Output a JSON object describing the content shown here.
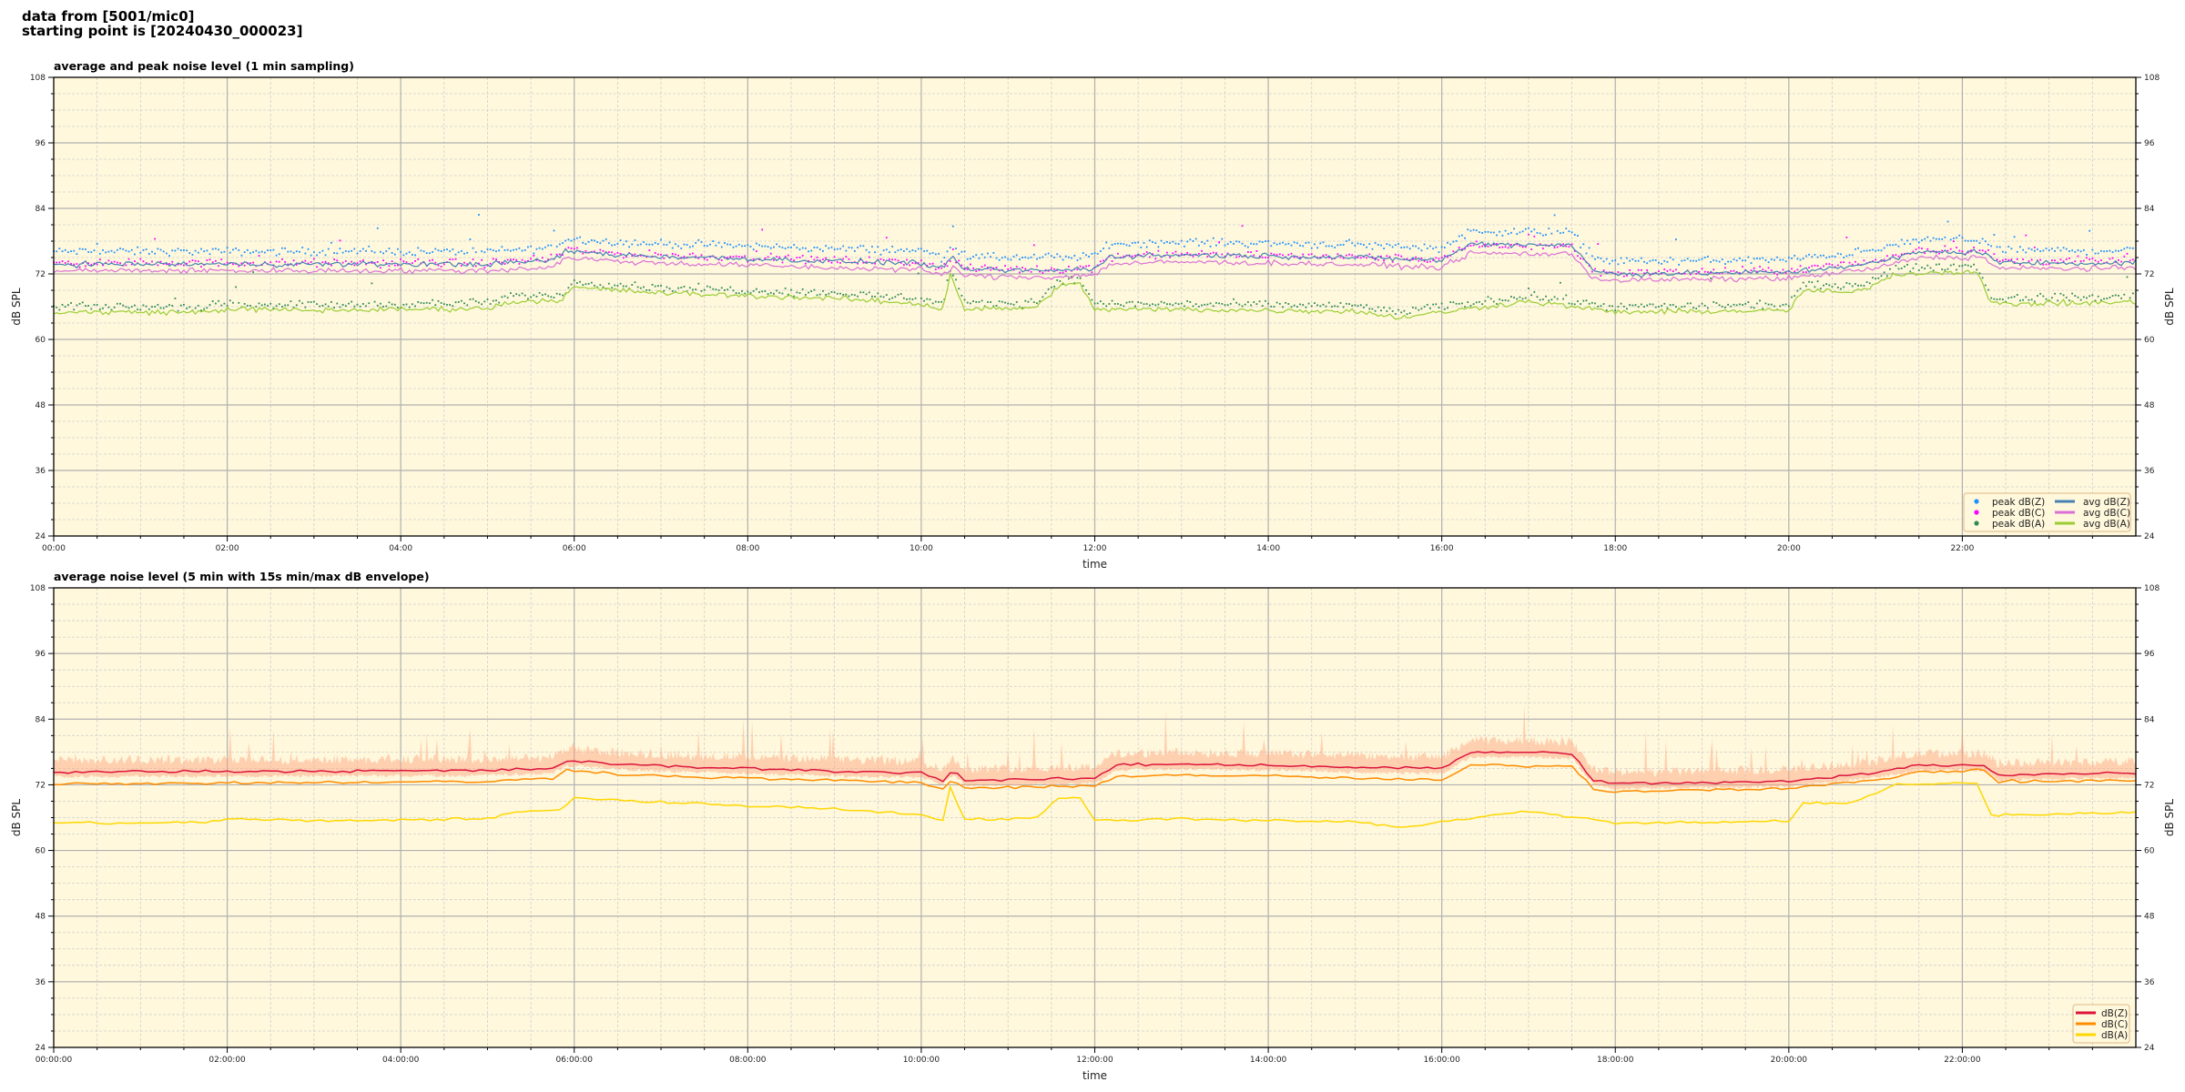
{
  "figure": {
    "title_line1": "data from [5001/mic0]",
    "title_line2": "starting point is [20240430_000023]"
  },
  "colors": {
    "plot_background": "#fff8dc",
    "peak_dBZ": "#1e90ff",
    "peak_dBC": "#ff00ff",
    "peak_dBA": "#2e8b57",
    "avg_dBZ": "#4682b4",
    "avg_dBC": "#da70d6",
    "avg_dBA": "#9acd32",
    "dBZ": "#dc143c",
    "dBC": "#ff8c00",
    "dBA": "#ffd700",
    "envelope": "#ffa07a"
  },
  "chart_data": [
    {
      "type": "scatter+line",
      "title": "average and peak noise level (1 min sampling)",
      "xlabel": "time",
      "ylabel": "dB SPL",
      "xlim": [
        "00:00",
        "24:00"
      ],
      "ylim": [
        24,
        108
      ],
      "yticks": [
        24,
        36,
        48,
        60,
        72,
        84,
        96,
        108
      ],
      "xtick_labels": [
        "00:00",
        "02:00",
        "04:00",
        "06:00",
        "08:00",
        "10:00",
        "12:00",
        "14:00",
        "16:00",
        "18:00",
        "20:00",
        "22:00"
      ],
      "grid": true,
      "legend_position": "lower-right",
      "series": [
        {
          "name": "peak dB(Z)",
          "kind": "points",
          "based_on": "avg dB(Z)",
          "offset_db": 2.3
        },
        {
          "name": "peak dB(C)",
          "kind": "points",
          "based_on": "avg dB(C)",
          "offset_db": 1.4
        },
        {
          "name": "peak dB(A)",
          "kind": "points",
          "based_on": "avg dB(A)",
          "offset_db": 1.0
        },
        {
          "name": "avg dB(Z)",
          "kind": "line",
          "points": [
            [
              "00:00",
              73.8
            ],
            [
              "05:00",
              73.8
            ],
            [
              "05:45",
              74.5
            ],
            [
              "05:55",
              76.2
            ],
            [
              "06:30",
              75.5
            ],
            [
              "07:00",
              75.2
            ],
            [
              "08:00",
              74.8
            ],
            [
              "09:00",
              74.3
            ],
            [
              "10:00",
              74
            ],
            [
              "10:15",
              72.8
            ],
            [
              "10:22",
              75
            ],
            [
              "10:30",
              72.8
            ],
            [
              "11:30",
              72.6
            ],
            [
              "12:00",
              73
            ],
            [
              "12:10",
              75.2
            ],
            [
              "13:00",
              75.5
            ],
            [
              "14:00",
              75.3
            ],
            [
              "15:00",
              75
            ],
            [
              "16:00",
              74.5
            ],
            [
              "16:20",
              77.5
            ],
            [
              "17:30",
              77.3
            ],
            [
              "17:45",
              72.5
            ],
            [
              "18:00",
              72
            ],
            [
              "20:00",
              72.3
            ],
            [
              "21:00",
              74
            ],
            [
              "21:30",
              76
            ],
            [
              "22:15",
              76
            ],
            [
              "22:25",
              74
            ],
            [
              "24:00",
              74
            ]
          ]
        },
        {
          "name": "avg dB(C)",
          "kind": "line",
          "points": [
            [
              "00:00",
              72.6
            ],
            [
              "05:00",
              72.6
            ],
            [
              "05:45",
              73.3
            ],
            [
              "05:55",
              75
            ],
            [
              "06:30",
              74.3
            ],
            [
              "07:00",
              74
            ],
            [
              "08:00",
              73.6
            ],
            [
              "09:00",
              73.1
            ],
            [
              "10:00",
              72.8
            ],
            [
              "10:15",
              71.6
            ],
            [
              "10:22",
              73.5
            ],
            [
              "10:30",
              71.6
            ],
            [
              "11:30",
              71.4
            ],
            [
              "12:00",
              71.8
            ],
            [
              "12:10",
              73.8
            ],
            [
              "13:00",
              74.2
            ],
            [
              "14:00",
              74
            ],
            [
              "15:00",
              73.7
            ],
            [
              "16:00",
              73.2
            ],
            [
              "16:20",
              75.8
            ],
            [
              "17:30",
              75.6
            ],
            [
              "17:45",
              71.2
            ],
            [
              "18:00",
              70.8
            ],
            [
              "20:00",
              71.2
            ],
            [
              "21:00",
              73
            ],
            [
              "21:30",
              75
            ],
            [
              "22:15",
              75
            ],
            [
              "22:25",
              73
            ],
            [
              "24:00",
              73
            ]
          ]
        },
        {
          "name": "avg dB(A)",
          "kind": "line",
          "points": [
            [
              "00:00",
              65
            ],
            [
              "01:45",
              65
            ],
            [
              "02:00",
              65.6
            ],
            [
              "03:00",
              65.3
            ],
            [
              "04:00",
              65.5
            ],
            [
              "05:00",
              65.7
            ],
            [
              "05:20",
              67
            ],
            [
              "05:50",
              67.2
            ],
            [
              "06:00",
              69.5
            ],
            [
              "06:30",
              69
            ],
            [
              "07:00",
              68.5
            ],
            [
              "08:00",
              68
            ],
            [
              "09:00",
              67.5
            ],
            [
              "10:00",
              66.5
            ],
            [
              "10:15",
              65.5
            ],
            [
              "10:20",
              72
            ],
            [
              "10:30",
              65.5
            ],
            [
              "11:20",
              65.8
            ],
            [
              "11:35",
              70
            ],
            [
              "11:50",
              70
            ],
            [
              "12:00",
              65.5
            ],
            [
              "13:00",
              65.5
            ],
            [
              "14:00",
              65.3
            ],
            [
              "15:00",
              65.2
            ],
            [
              "15:30",
              64
            ],
            [
              "16:00",
              65
            ],
            [
              "17:00",
              67
            ],
            [
              "17:30",
              66
            ],
            [
              "18:00",
              65
            ],
            [
              "20:00",
              65.3
            ],
            [
              "20:10",
              69
            ],
            [
              "20:45",
              68.5
            ],
            [
              "21:15",
              72
            ],
            [
              "22:10",
              72.5
            ],
            [
              "22:20",
              66.5
            ],
            [
              "24:00",
              66.8
            ]
          ]
        }
      ]
    },
    {
      "type": "line",
      "title": "average noise level (5 min with 15s min/max dB envelope)",
      "xlabel": "time",
      "ylabel": "dB SPL",
      "xlim": [
        "00:00:00",
        "24:00:00"
      ],
      "ylim": [
        24,
        108
      ],
      "yticks": [
        24,
        36,
        48,
        60,
        72,
        84,
        96,
        108
      ],
      "xtick_labels": [
        "00:00:00",
        "02:00:00",
        "04:00:00",
        "06:00:00",
        "08:00:00",
        "10:00:00",
        "12:00:00",
        "14:00:00",
        "16:00:00",
        "18:00:00",
        "20:00:00",
        "22:00:00"
      ],
      "grid": true,
      "legend_position": "lower-right",
      "envelope": {
        "of": "dB(Z)",
        "min_offset_db": -1.0,
        "max_offset_db": 2.5
      },
      "series": [
        {
          "name": "dB(Z)",
          "points": [
            [
              "00:00",
              74.4
            ],
            [
              "05:00",
              74.6
            ],
            [
              "05:45",
              75
            ],
            [
              "05:55",
              76.4
            ],
            [
              "06:30",
              75.8
            ],
            [
              "07:00",
              75.4
            ],
            [
              "08:00",
              75
            ],
            [
              "09:00",
              74.5
            ],
            [
              "10:00",
              74.2
            ],
            [
              "10:15",
              72.8
            ],
            [
              "10:22",
              74.8
            ],
            [
              "10:30",
              72.8
            ],
            [
              "11:30",
              73
            ],
            [
              "12:00",
              73.2
            ],
            [
              "12:15",
              75.6
            ],
            [
              "13:00",
              75.8
            ],
            [
              "14:00",
              75.6
            ],
            [
              "15:00",
              75.2
            ],
            [
              "16:00",
              75
            ],
            [
              "16:20",
              78
            ],
            [
              "17:30",
              77.8
            ],
            [
              "17:45",
              72.8
            ],
            [
              "18:00",
              72.2
            ],
            [
              "20:00",
              72.6
            ],
            [
              "21:00",
              74.2
            ],
            [
              "21:30",
              75.6
            ],
            [
              "22:15",
              75.6
            ],
            [
              "22:25",
              73.8
            ],
            [
              "24:00",
              74.2
            ]
          ]
        },
        {
          "name": "dB(C)",
          "points": [
            [
              "00:00",
              72.2
            ],
            [
              "05:00",
              72.6
            ],
            [
              "05:45",
              73.2
            ],
            [
              "05:55",
              74.8
            ],
            [
              "06:30",
              74
            ],
            [
              "07:00",
              73.6
            ],
            [
              "08:00",
              73.2
            ],
            [
              "09:00",
              72.8
            ],
            [
              "10:00",
              72.4
            ],
            [
              "10:15",
              71.2
            ],
            [
              "10:22",
              73
            ],
            [
              "10:30",
              71.4
            ],
            [
              "11:30",
              71.6
            ],
            [
              "12:00",
              71.8
            ],
            [
              "12:15",
              73.6
            ],
            [
              "13:00",
              73.8
            ],
            [
              "14:00",
              73.6
            ],
            [
              "15:00",
              73.2
            ],
            [
              "16:00",
              72.8
            ],
            [
              "16:20",
              75.6
            ],
            [
              "17:30",
              75.4
            ],
            [
              "17:45",
              71.2
            ],
            [
              "18:00",
              70.8
            ],
            [
              "20:00",
              71.4
            ],
            [
              "21:00",
              72.8
            ],
            [
              "21:30",
              74.4
            ],
            [
              "22:15",
              74.6
            ],
            [
              "22:25",
              72.6
            ],
            [
              "24:00",
              72.8
            ]
          ]
        },
        {
          "name": "dB(A)",
          "points": [
            [
              "00:00",
              65
            ],
            [
              "01:45",
              65.1
            ],
            [
              "02:00",
              65.8
            ],
            [
              "03:00",
              65.4
            ],
            [
              "04:00",
              65.6
            ],
            [
              "05:00",
              65.8
            ],
            [
              "05:20",
              67
            ],
            [
              "05:50",
              67.4
            ],
            [
              "06:00",
              69.7
            ],
            [
              "06:30",
              69.2
            ],
            [
              "07:00",
              68.8
            ],
            [
              "08:00",
              68.2
            ],
            [
              "09:00",
              67.6
            ],
            [
              "10:00",
              66.6
            ],
            [
              "10:15",
              65.6
            ],
            [
              "10:20",
              71.5
            ],
            [
              "10:30",
              65.6
            ],
            [
              "11:20",
              66
            ],
            [
              "11:35",
              69.5
            ],
            [
              "11:50",
              69.5
            ],
            [
              "12:00",
              65.5
            ],
            [
              "13:00",
              65.8
            ],
            [
              "14:00",
              65.5
            ],
            [
              "15:00",
              65.3
            ],
            [
              "15:30",
              64.2
            ],
            [
              "16:00",
              65.2
            ],
            [
              "17:00",
              67.2
            ],
            [
              "17:30",
              66.2
            ],
            [
              "18:00",
              65
            ],
            [
              "20:00",
              65.4
            ],
            [
              "20:10",
              68.5
            ],
            [
              "20:45",
              68.8
            ],
            [
              "21:15",
              72
            ],
            [
              "22:10",
              72.4
            ],
            [
              "22:20",
              66.4
            ],
            [
              "24:00",
              67
            ]
          ]
        }
      ]
    }
  ]
}
